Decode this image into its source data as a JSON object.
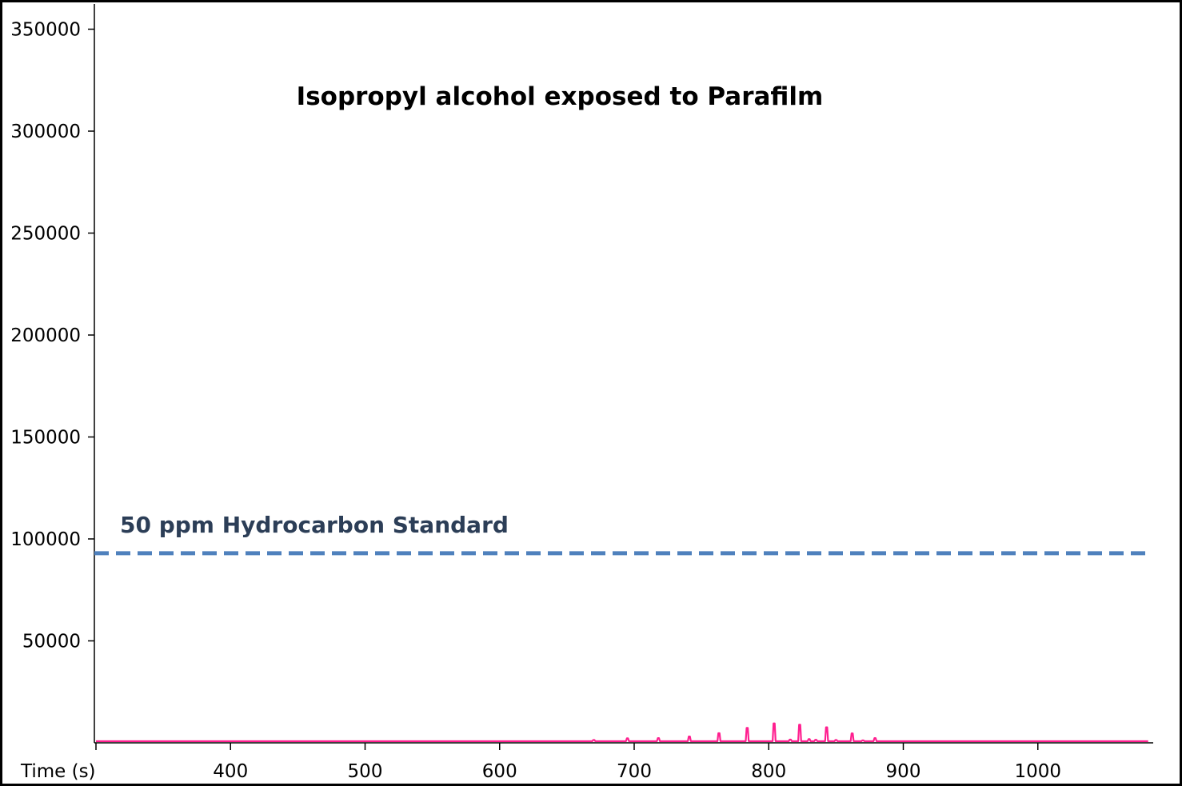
{
  "chart_data": {
    "type": "line",
    "title": "Isopropyl alcohol exposed to Parafilm",
    "xlabel": "Time (s)",
    "ylabel": "",
    "xlim": [
      300,
      1085
    ],
    "ylim": [
      0,
      350000
    ],
    "x_ticks": [
      300,
      400,
      500,
      600,
      700,
      800,
      900,
      1000
    ],
    "x_tick_labels": [
      "",
      "400",
      "500",
      "600",
      "700",
      "800",
      "900",
      "1000"
    ],
    "y_ticks": [
      50000,
      100000,
      150000,
      200000,
      250000,
      300000,
      350000
    ],
    "y_tick_labels": [
      "50000",
      "100000",
      "150000",
      "200000",
      "250000",
      "300000",
      "350000"
    ],
    "grid": false,
    "series": [
      {
        "color": "#ff1f8f",
        "baseline": 800,
        "peaks": [
          {
            "x": 670,
            "y": 1400
          },
          {
            "x": 695,
            "y": 2200
          },
          {
            "x": 718,
            "y": 2300
          },
          {
            "x": 741,
            "y": 3100
          },
          {
            "x": 763,
            "y": 4700
          },
          {
            "x": 784,
            "y": 7300
          },
          {
            "x": 804,
            "y": 9500
          },
          {
            "x": 816,
            "y": 1600
          },
          {
            "x": 823,
            "y": 8900
          },
          {
            "x": 830,
            "y": 1800
          },
          {
            "x": 835,
            "y": 1500
          },
          {
            "x": 843,
            "y": 7600
          },
          {
            "x": 850,
            "y": 1400
          },
          {
            "x": 862,
            "y": 4600
          },
          {
            "x": 870,
            "y": 1200
          },
          {
            "x": 879,
            "y": 2300
          }
        ]
      }
    ],
    "reference_lines": [
      {
        "y": 93000,
        "label": "50 ppm Hydrocarbon Standard",
        "color": "#4f81bd",
        "label_color": "#2c3e57",
        "style": "dashed"
      }
    ]
  }
}
